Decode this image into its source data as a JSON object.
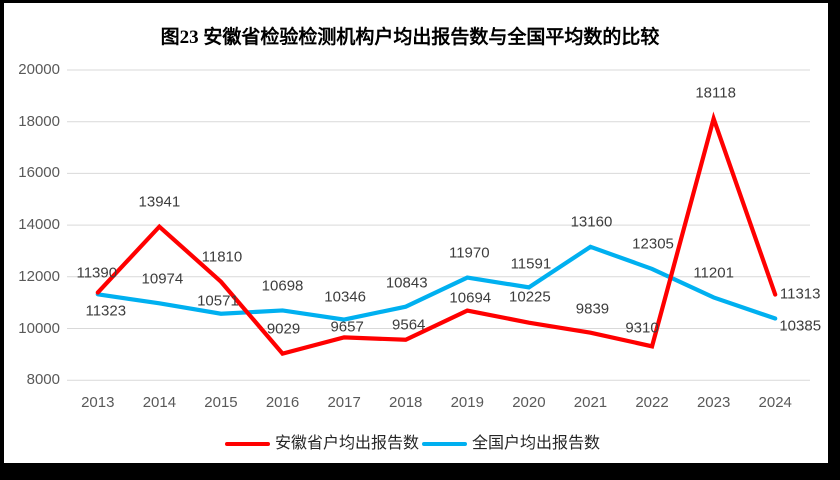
{
  "figure": {
    "title": "图23 安徽省检验检测机构户均出报告数与全国平均数的比较"
  },
  "chart_data": {
    "type": "line",
    "title": "图23 安徽省检验检测机构户均出报告数与全国平均数的比较",
    "categories": [
      "2013",
      "2014",
      "2015",
      "2016",
      "2017",
      "2018",
      "2019",
      "2020",
      "2021",
      "2022",
      "2023",
      "2024"
    ],
    "series": [
      {
        "name": "安徽省户均出报告数",
        "color": "#FF0000",
        "values": [
          11390,
          13941,
          11810,
          9029,
          9657,
          9564,
          10694,
          10225,
          9839,
          9310,
          18118,
          11313
        ]
      },
      {
        "name": "全国户均出报告数",
        "color": "#00B0F0",
        "values": [
          11323,
          10974,
          10571,
          10698,
          10346,
          10843,
          11970,
          11591,
          13160,
          12305,
          11201,
          10385
        ]
      }
    ],
    "ylim": [
      8000,
      20000
    ],
    "yticks": [
      8000,
      10000,
      12000,
      14000,
      16000,
      18000,
      20000
    ],
    "grid": true,
    "legend_position": "bottom",
    "layout": {
      "label_offsets": [
        [
          [
            -1,
            -20
          ],
          [
            0,
            -25
          ],
          [
            1,
            -25
          ],
          [
            1,
            -25
          ],
          [
            3,
            -10
          ],
          [
            3,
            -15
          ],
          [
            3,
            -13
          ],
          [
            1,
            -26
          ],
          [
            2,
            -24
          ],
          [
            -10,
            -18
          ],
          [
            2,
            -26
          ],
          [
            25,
            -1
          ]
        ],
        [
          [
            8,
            17
          ],
          [
            3,
            -24
          ],
          [
            -3,
            -13
          ],
          [
            0,
            -24
          ],
          [
            1,
            -23
          ],
          [
            1,
            -24
          ],
          [
            2,
            -25
          ],
          [
            2,
            -23
          ],
          [
            1,
            -25
          ],
          [
            1,
            -25
          ],
          [
            0,
            -24
          ],
          [
            25,
            7
          ]
        ]
      ],
      "draw_order": [
        1,
        0
      ]
    },
    "colors": {
      "grid": "#D9D9D9",
      "axis_text": "#595959",
      "label_text": "#3D3D3D",
      "title_text": "#000000"
    }
  }
}
